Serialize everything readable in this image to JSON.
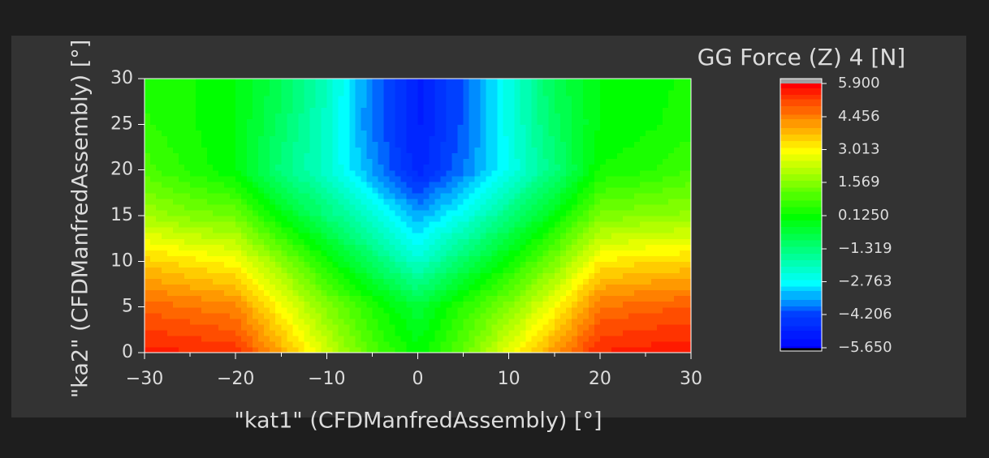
{
  "chart_data": {
    "type": "contour",
    "title": "GG Force (Z) 4 [N]",
    "x_label": "\"kat1\" (CFDManfredAssembly) [°]",
    "y_label": "\"ka2\" (CFDManfredAssembly) [°]",
    "x": [
      -30,
      -25,
      -20,
      -15,
      -10,
      -5,
      0,
      5,
      10,
      15,
      20,
      25,
      30
    ],
    "y": [
      0,
      5,
      10,
      15,
      20,
      25,
      30
    ],
    "z": [
      [
        5.6,
        5.5,
        5.4,
        4.0,
        2.5,
        1.0,
        0.1,
        1.2,
        2.8,
        4.2,
        5.5,
        5.6,
        5.7
      ],
      [
        4.8,
        4.6,
        4.4,
        3.0,
        1.6,
        0.5,
        -0.5,
        0.6,
        1.6,
        3.0,
        4.6,
        4.8,
        4.9
      ],
      [
        3.6,
        3.3,
        3.0,
        1.7,
        0.3,
        -1.0,
        -2.2,
        -1.0,
        0.2,
        1.5,
        3.2,
        3.4,
        3.5
      ],
      [
        2.0,
        1.6,
        1.4,
        0.0,
        -1.2,
        -2.3,
        -3.4,
        -2.5,
        -1.3,
        0.0,
        1.5,
        1.7,
        1.8
      ],
      [
        1.0,
        0.5,
        0.0,
        -1.3,
        -2.2,
        -3.5,
        -4.8,
        -3.8,
        -2.6,
        -1.3,
        0.3,
        0.5,
        0.9
      ],
      [
        0.6,
        0.3,
        0.0,
        -1.0,
        -2.2,
        -3.8,
        -5.0,
        -4.0,
        -2.5,
        -1.0,
        0.0,
        0.2,
        0.4
      ],
      [
        0.5,
        0.3,
        0.0,
        -0.8,
        -2.0,
        -3.8,
        -5.0,
        -4.0,
        -2.5,
        -0.8,
        0.0,
        0.2,
        0.3
      ]
    ],
    "xlim": [
      -30,
      30
    ],
    "ylim": [
      0,
      30
    ],
    "xticks": [
      {
        "value": -30,
        "label": "−30"
      },
      {
        "value": -20,
        "label": "−20"
      },
      {
        "value": -10,
        "label": "−10"
      },
      0,
      10,
      20,
      30
    ],
    "yticks": [
      0,
      5,
      10,
      15,
      20,
      25,
      30
    ],
    "zlim": [
      -5.65,
      5.9
    ],
    "zticks": [
      {
        "value": 5.9,
        "label": "5.900"
      },
      {
        "value": 4.456,
        "label": "4.456"
      },
      {
        "value": 3.013,
        "label": "3.013"
      },
      {
        "value": 1.569,
        "label": "1.569"
      },
      {
        "value": 0.125,
        "label": "0.1250"
      },
      {
        "value": -1.319,
        "label": "−1.319"
      },
      {
        "value": -2.763,
        "label": "−2.763"
      },
      {
        "value": -4.206,
        "label": "−4.206"
      },
      {
        "value": -5.65,
        "label": "−5.650"
      }
    ],
    "colormap": [
      "#0000ff",
      "#0040ff",
      "#00ffff",
      "#00ff80",
      "#00ff00",
      "#80ff00",
      "#ffff00",
      "#ff8000",
      "#ff0000"
    ]
  }
}
